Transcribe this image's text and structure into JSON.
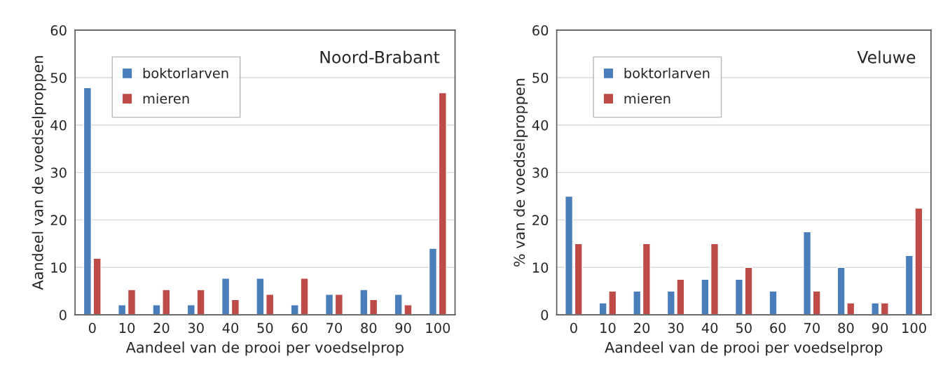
{
  "chart_data": [
    {
      "type": "bar",
      "title": "Noord-Brabant",
      "xlabel": "Aandeel van de prooi per voedselprop",
      "ylabel": "Aandeel van de voedselproppen",
      "categories": [
        "0",
        "10",
        "20",
        "30",
        "40",
        "50",
        "60",
        "70",
        "80",
        "90",
        "100"
      ],
      "series": [
        {
          "name": "boktorlarven",
          "color": "#4a7ebb",
          "values": [
            47.9,
            2.1,
            2.1,
            2.1,
            7.7,
            7.7,
            2.1,
            4.3,
            5.3,
            4.3,
            14.0
          ]
        },
        {
          "name": "mieren",
          "color": "#be4b48",
          "values": [
            11.9,
            5.3,
            5.3,
            5.3,
            3.2,
            4.3,
            7.7,
            4.3,
            3.2,
            2.1,
            46.8
          ]
        }
      ],
      "ylim": [
        0,
        60
      ],
      "yticks": [
        0,
        10,
        20,
        30,
        40,
        50,
        60
      ],
      "grid": "y",
      "legend": "top left"
    },
    {
      "type": "bar",
      "title": "Veluwe",
      "xlabel": "Aandeel van de prooi per voedselprop",
      "ylabel": "% van de voedselproppen",
      "categories": [
        "0",
        "10",
        "20",
        "30",
        "40",
        "50",
        "60",
        "70",
        "80",
        "90",
        "100"
      ],
      "series": [
        {
          "name": "boktorlarven",
          "color": "#4a7ebb",
          "values": [
            25,
            2.5,
            5,
            5,
            7.5,
            7.5,
            5,
            17.5,
            10,
            2.5,
            12.5
          ]
        },
        {
          "name": "mieren",
          "color": "#be4b48",
          "values": [
            15,
            5,
            15,
            7.5,
            15,
            10,
            null,
            5,
            2.5,
            2.5,
            22.5
          ]
        }
      ],
      "ylim": [
        0,
        60
      ],
      "yticks": [
        0,
        10,
        20,
        30,
        40,
        50,
        60
      ],
      "grid": "y",
      "legend": "top left"
    }
  ]
}
